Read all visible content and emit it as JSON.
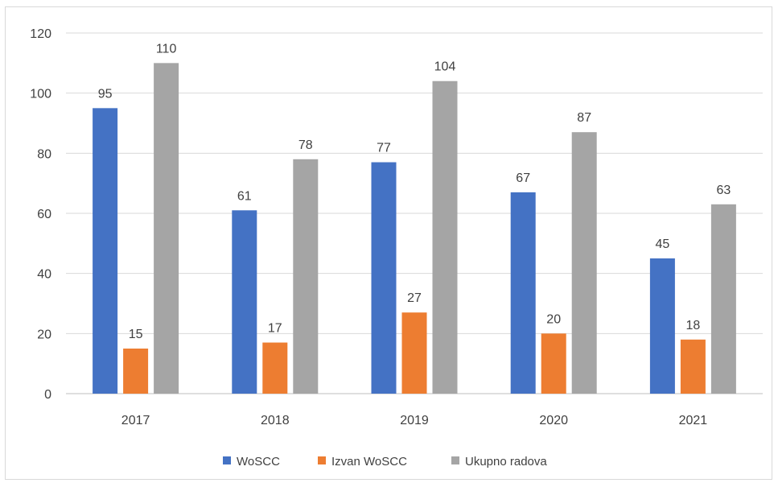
{
  "chart_data": {
    "type": "bar",
    "title": "",
    "xlabel": "",
    "ylabel": "",
    "categories": [
      "2017",
      "2018",
      "2019",
      "2020",
      "2021"
    ],
    "series": [
      {
        "name": "WoSCC",
        "color": "#4472c4",
        "values": [
          95,
          61,
          77,
          67,
          45
        ]
      },
      {
        "name": "Izvan WoSCC",
        "color": "#ed7d31",
        "values": [
          15,
          17,
          27,
          20,
          18
        ]
      },
      {
        "name": "Ukupno radova",
        "color": "#a5a5a5",
        "values": [
          110,
          78,
          104,
          87,
          63
        ]
      }
    ],
    "ylim": [
      0,
      120
    ],
    "yticks": [
      0,
      20,
      40,
      60,
      80,
      100,
      120
    ],
    "grid": true,
    "data_labels": true,
    "legend_position": "bottom"
  }
}
